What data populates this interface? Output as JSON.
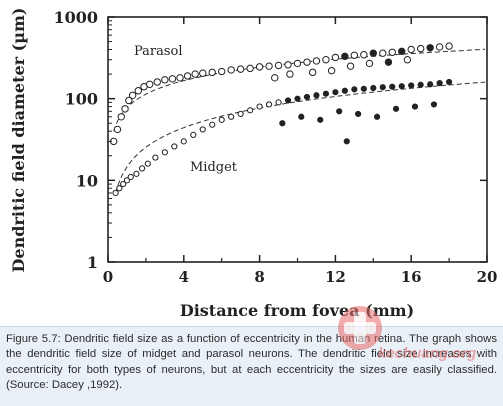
{
  "chart_data": {
    "type": "scatter",
    "xlabel": "Distance from fovea (mm)",
    "ylabel": "Dendritic field diameter (µm)",
    "xlim": [
      0,
      20
    ],
    "ylim": [
      1,
      1000
    ],
    "yscale": "log",
    "xticks": [
      "0",
      "4",
      "8",
      "12",
      "16",
      "20"
    ],
    "yticks": [
      "1",
      "10",
      "100",
      "1000"
    ],
    "annotations": [
      "Parasol",
      "Midget"
    ],
    "series": [
      {
        "name": "Parasol",
        "x": [
          0.3,
          0.5,
          0.7,
          0.9,
          1.1,
          1.3,
          1.6,
          1.9,
          2.2,
          2.6,
          3.0,
          3.4,
          3.8,
          4.2,
          4.6,
          5.0,
          5.5,
          6.0,
          6.5,
          7.0,
          7.5,
          8.0,
          8.5,
          9.0,
          9.5,
          10.0,
          10.5,
          11.0,
          11.5,
          12.0,
          12.5,
          13.0,
          13.5,
          14.0,
          14.5,
          15.0,
          15.5,
          16.0,
          16.5,
          17.0,
          17.5,
          18.0,
          8.8,
          9.6,
          10.8,
          11.8,
          12.8,
          13.8,
          14.8,
          15.8
        ],
        "y": [
          30,
          42,
          60,
          75,
          95,
          110,
          125,
          140,
          150,
          160,
          170,
          175,
          180,
          190,
          200,
          205,
          210,
          215,
          225,
          230,
          235,
          245,
          250,
          255,
          260,
          270,
          280,
          290,
          300,
          320,
          330,
          340,
          345,
          360,
          360,
          370,
          380,
          400,
          410,
          420,
          430,
          440,
          180,
          200,
          210,
          220,
          250,
          270,
          280,
          300
        ]
      },
      {
        "name": "Midget",
        "x": [
          0.4,
          0.6,
          0.8,
          1.0,
          1.2,
          1.5,
          1.8,
          2.1,
          2.5,
          3.0,
          3.5,
          4.0,
          4.5,
          5.0,
          5.5,
          6.0,
          6.5,
          7.0,
          7.5,
          8.0,
          8.5,
          9.0,
          9.5,
          10.0,
          10.5,
          11.0,
          11.5,
          12.0,
          12.5,
          13.0,
          13.5,
          14.0,
          14.5,
          15.0,
          15.5,
          16.0,
          16.5,
          17.0,
          17.5,
          18.0,
          9.2,
          10.2,
          11.2,
          12.2,
          13.2,
          14.2,
          15.2,
          16.2,
          17.2,
          12.6
        ],
        "y": [
          7,
          8,
          9,
          10,
          11,
          12,
          14,
          16,
          19,
          22,
          26,
          30,
          36,
          42,
          48,
          55,
          60,
          65,
          72,
          80,
          85,
          90,
          95,
          100,
          105,
          110,
          115,
          120,
          125,
          130,
          132,
          135,
          138,
          140,
          142,
          145,
          148,
          150,
          155,
          160,
          50,
          60,
          55,
          70,
          65,
          60,
          75,
          80,
          85,
          30
        ]
      }
    ]
  },
  "caption": {
    "text": "Figure 5.7: Dendritic field size as a function of eccentricity in the human retina. The graph shows the dendritic field size of midget and parasol neurons. The dendritic field size increases with eccentricity for both types of neurons, but at each eccentricity the sizes are easily classified. (Source: Dacey ,1992)."
  },
  "watermark": {
    "text": "kechuang.org",
    "icon": "logo-mark-icon"
  },
  "colors": {
    "caption_bg": "#eaf0f7",
    "axis": "#222222",
    "points": "#222222"
  }
}
